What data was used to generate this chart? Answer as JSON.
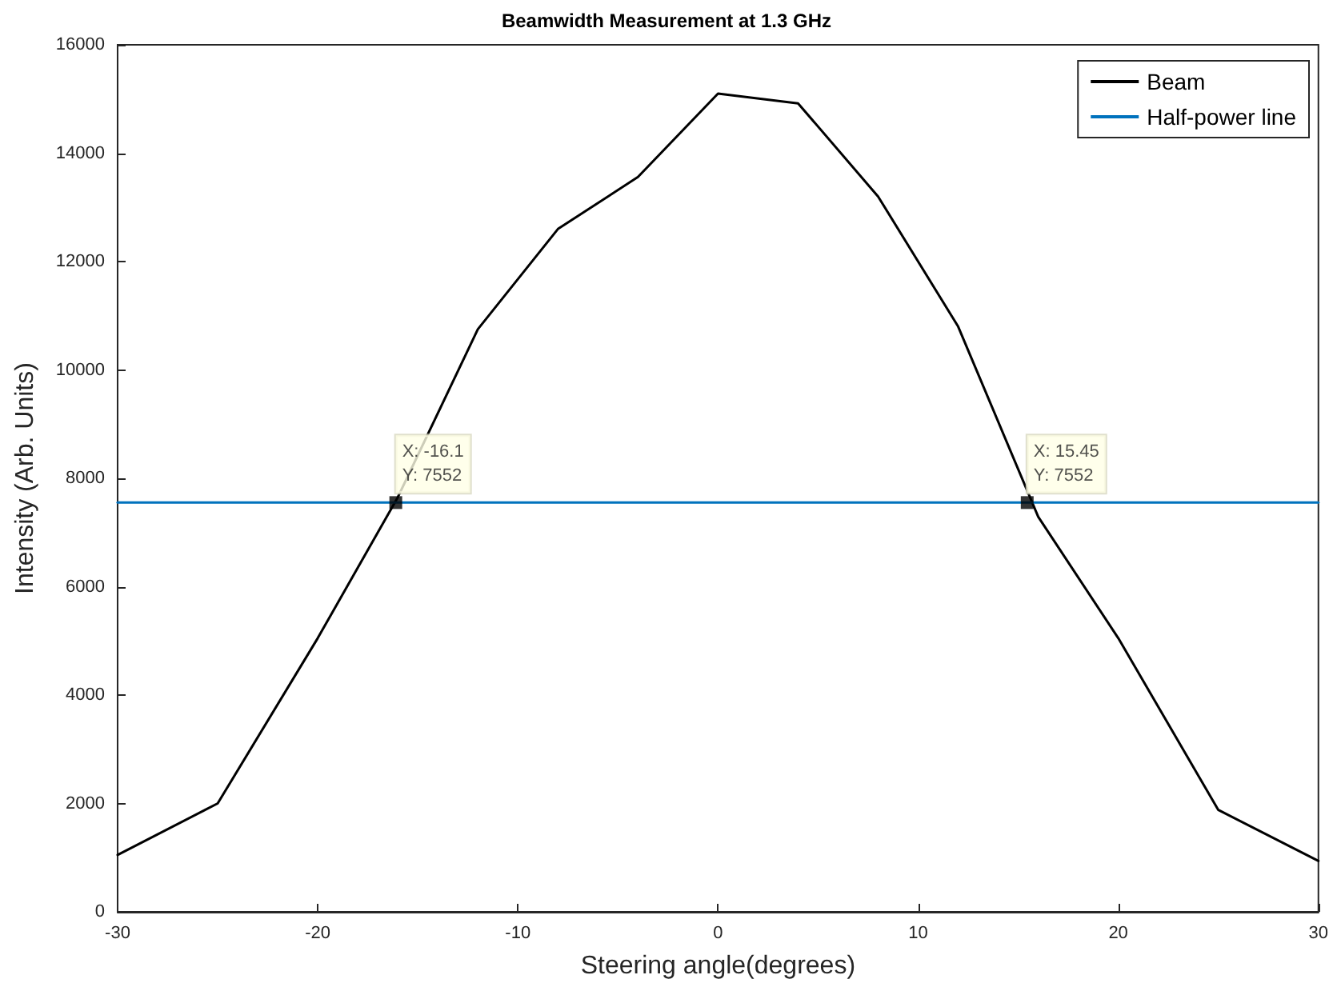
{
  "chart_data": {
    "type": "line",
    "title": "Beamwidth Measurement at 1.3 GHz",
    "xlabel": "Steering angle(degrees)",
    "ylabel": "Intensity (Arb. Units)",
    "series": [
      {
        "name": "Beam",
        "color": "#000000",
        "x": [
          -30,
          -25,
          -20,
          -16,
          -12,
          -8,
          -4,
          0,
          4,
          8,
          12,
          16,
          20,
          25,
          30
        ],
        "values": [
          1050,
          2000,
          5050,
          7650,
          10750,
          12600,
          13560,
          15100,
          14920,
          13200,
          10800,
          7290,
          5050,
          1880,
          940
        ]
      },
      {
        "name": "Half-power line",
        "color": "#0072bd",
        "x": [
          -30,
          30
        ],
        "values": [
          7552,
          7552
        ]
      }
    ],
    "annotations": [
      {
        "text": "X: -16.1\nY: 7552",
        "x": -16.1,
        "y": 7552
      },
      {
        "text": "X: 15.45\nY: 7552",
        "x": 15.45,
        "y": 7552
      }
    ],
    "xlim": [
      -30,
      30
    ],
    "xticks": [
      -30,
      -20,
      -10,
      0,
      10,
      20,
      30
    ],
    "ylim": [
      0,
      16000
    ],
    "yticks": [
      0,
      2000,
      4000,
      6000,
      8000,
      10000,
      12000,
      14000,
      16000
    ],
    "grid": false,
    "legend": "top right",
    "marker": "none",
    "line_style": "solid"
  }
}
